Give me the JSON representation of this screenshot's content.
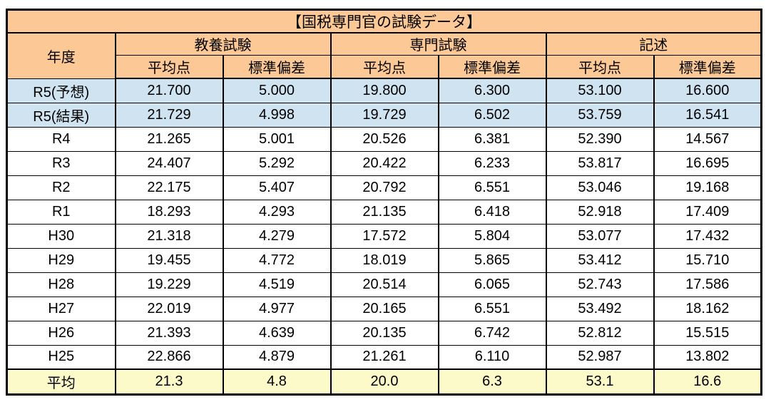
{
  "chart_data": {
    "type": "table",
    "title": "【国税専門官の試験データ】",
    "header": {
      "year": "年度",
      "groups": [
        "教養試験",
        "専門試験",
        "記述"
      ],
      "sub_columns": [
        "平均点",
        "標準偏差",
        "平均点",
        "標準偏差",
        "平均点",
        "標準偏差"
      ]
    },
    "rows": [
      {
        "year": "R5(予想)",
        "values": [
          "21.700",
          "5.000",
          "19.800",
          "6.300",
          "53.100",
          "16.600"
        ],
        "highlight": "blue"
      },
      {
        "year": "R5(結果)",
        "values": [
          "21.729",
          "4.998",
          "19.729",
          "6.502",
          "53.759",
          "16.541"
        ],
        "highlight": "blue"
      },
      {
        "year": "R4",
        "values": [
          "21.265",
          "5.001",
          "20.526",
          "6.381",
          "52.390",
          "14.567"
        ],
        "highlight": ""
      },
      {
        "year": "R3",
        "values": [
          "24.407",
          "5.292",
          "20.422",
          "6.233",
          "53.817",
          "16.695"
        ],
        "highlight": ""
      },
      {
        "year": "R2",
        "values": [
          "22.175",
          "5.407",
          "20.792",
          "6.551",
          "53.046",
          "19.168"
        ],
        "highlight": ""
      },
      {
        "year": "R1",
        "values": [
          "18.293",
          "4.293",
          "21.135",
          "6.418",
          "52.918",
          "17.409"
        ],
        "highlight": ""
      },
      {
        "year": "H30",
        "values": [
          "21.318",
          "4.279",
          "17.572",
          "5.804",
          "53.077",
          "17.432"
        ],
        "highlight": ""
      },
      {
        "year": "H29",
        "values": [
          "19.455",
          "4.772",
          "18.019",
          "5.865",
          "53.412",
          "15.710"
        ],
        "highlight": ""
      },
      {
        "year": "H28",
        "values": [
          "19.229",
          "4.519",
          "20.514",
          "6.065",
          "52.743",
          "17.586"
        ],
        "highlight": ""
      },
      {
        "year": "H27",
        "values": [
          "22.019",
          "4.977",
          "20.165",
          "6.551",
          "53.492",
          "18.162"
        ],
        "highlight": ""
      },
      {
        "year": "H26",
        "values": [
          "21.393",
          "4.639",
          "20.135",
          "6.742",
          "52.812",
          "15.515"
        ],
        "highlight": ""
      },
      {
        "year": "H25",
        "values": [
          "22.866",
          "4.879",
          "21.261",
          "6.110",
          "52.987",
          "13.802"
        ],
        "highlight": ""
      },
      {
        "year": "平均",
        "values": [
          "21.3",
          "4.8",
          "20.0",
          "6.3",
          "53.1",
          "16.6"
        ],
        "highlight": "yellow"
      }
    ]
  },
  "colors": {
    "header_bg": "#FCC996",
    "forecast_row_bg": "#CFE3F1",
    "average_row_bg": "#FBFAC8",
    "border_color": "#000000",
    "page_bg": "#FFFFFF"
  }
}
